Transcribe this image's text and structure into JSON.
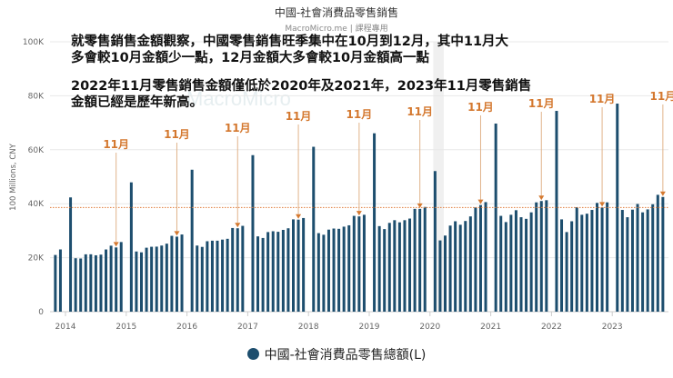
{
  "chart_data": {
    "type": "bar",
    "title": "中國-社會消費品零售銷售",
    "subtitle": "MacroMicro.me | 課程專用",
    "ylabel": "100 Millions, CNY",
    "ylim": [
      0,
      100000
    ],
    "yticks": [
      "0",
      "20K",
      "40K",
      "60K",
      "80K",
      "100K"
    ],
    "xticks": [
      "2014",
      "2015",
      "2016",
      "2017",
      "2018",
      "2019",
      "2020",
      "2021",
      "2022",
      "2023"
    ],
    "grid": true,
    "legend_position": "bottom",
    "series": [
      {
        "name": "中國-社會消費品零售總額(L)",
        "color": "#1d4e6e",
        "points": [
          [
            "2013-11",
            21012
          ],
          [
            "2013-12",
            23060
          ],
          [
            "2014-02",
            42344
          ],
          [
            "2014-03",
            19801
          ],
          [
            "2014-04",
            19701
          ],
          [
            "2014-05",
            21250
          ],
          [
            "2014-06",
            21261
          ],
          [
            "2014-07",
            20890
          ],
          [
            "2014-08",
            21134
          ],
          [
            "2014-09",
            23047
          ],
          [
            "2014-10",
            24451
          ],
          [
            "2014-11",
            23800
          ],
          [
            "2014-12",
            25801
          ],
          [
            "2015-02",
            47919
          ],
          [
            "2015-03",
            22300
          ],
          [
            "2015-04",
            21991
          ],
          [
            "2015-05",
            23700
          ],
          [
            "2015-06",
            24050
          ],
          [
            "2015-07",
            24100
          ],
          [
            "2015-08",
            24500
          ],
          [
            "2015-09",
            25200
          ],
          [
            "2015-10",
            28100
          ],
          [
            "2015-11",
            27800
          ],
          [
            "2015-12",
            28600
          ],
          [
            "2016-02",
            52600
          ],
          [
            "2016-03",
            24500
          ],
          [
            "2016-04",
            24000
          ],
          [
            "2016-05",
            26100
          ],
          [
            "2016-06",
            26300
          ],
          [
            "2016-07",
            26300
          ],
          [
            "2016-08",
            26700
          ],
          [
            "2016-09",
            27000
          ],
          [
            "2016-10",
            31000
          ],
          [
            "2016-11",
            30900
          ],
          [
            "2016-12",
            31800
          ],
          [
            "2017-02",
            58000
          ],
          [
            "2017-03",
            27900
          ],
          [
            "2017-04",
            27300
          ],
          [
            "2017-05",
            29500
          ],
          [
            "2017-06",
            29800
          ],
          [
            "2017-07",
            29600
          ],
          [
            "2017-08",
            30300
          ],
          [
            "2017-09",
            30900
          ],
          [
            "2017-10",
            34200
          ],
          [
            "2017-11",
            34100
          ],
          [
            "2017-12",
            34700
          ],
          [
            "2018-02",
            61100
          ],
          [
            "2018-03",
            29100
          ],
          [
            "2018-04",
            28500
          ],
          [
            "2018-05",
            30400
          ],
          [
            "2018-06",
            30800
          ],
          [
            "2018-07",
            30700
          ],
          [
            "2018-08",
            31500
          ],
          [
            "2018-09",
            32000
          ],
          [
            "2018-10",
            35500
          ],
          [
            "2018-11",
            35300
          ],
          [
            "2018-12",
            35900
          ],
          [
            "2019-02",
            66100
          ],
          [
            "2019-03",
            31700
          ],
          [
            "2019-04",
            30600
          ],
          [
            "2019-05",
            32900
          ],
          [
            "2019-06",
            33900
          ],
          [
            "2019-07",
            33100
          ],
          [
            "2019-08",
            33900
          ],
          [
            "2019-09",
            34500
          ],
          [
            "2019-10",
            38100
          ],
          [
            "2019-11",
            38100
          ],
          [
            "2019-12",
            38800
          ],
          [
            "2020-02",
            52100
          ],
          [
            "2020-03",
            26400
          ],
          [
            "2020-04",
            28200
          ],
          [
            "2020-05",
            31900
          ],
          [
            "2020-06",
            33500
          ],
          [
            "2020-07",
            32200
          ],
          [
            "2020-08",
            33600
          ],
          [
            "2020-09",
            35300
          ],
          [
            "2020-10",
            38600
          ],
          [
            "2020-11",
            39500
          ],
          [
            "2020-12",
            40600
          ],
          [
            "2021-02",
            69700
          ],
          [
            "2021-03",
            35500
          ],
          [
            "2021-04",
            33200
          ],
          [
            "2021-05",
            35900
          ],
          [
            "2021-06",
            37600
          ],
          [
            "2021-07",
            35000
          ],
          [
            "2021-08",
            34400
          ],
          [
            "2021-09",
            36800
          ],
          [
            "2021-10",
            40500
          ],
          [
            "2021-11",
            41000
          ],
          [
            "2021-12",
            41300
          ],
          [
            "2022-02",
            74400
          ],
          [
            "2022-03",
            34200
          ],
          [
            "2022-04",
            29500
          ],
          [
            "2022-05",
            33500
          ],
          [
            "2022-06",
            38700
          ],
          [
            "2022-07",
            35900
          ],
          [
            "2022-08",
            36300
          ],
          [
            "2022-09",
            37700
          ],
          [
            "2022-10",
            40300
          ],
          [
            "2022-11",
            38600
          ],
          [
            "2022-12",
            40500
          ],
          [
            "2023-02",
            77100
          ],
          [
            "2023-03",
            37700
          ],
          [
            "2023-04",
            35000
          ],
          [
            "2023-05",
            37800
          ],
          [
            "2023-06",
            39900
          ],
          [
            "2023-07",
            36800
          ],
          [
            "2023-08",
            37900
          ],
          [
            "2023-09",
            39800
          ],
          [
            "2023-10",
            43300
          ],
          [
            "2023-11",
            42500
          ]
        ]
      }
    ],
    "reference_line": {
      "value": 38600,
      "style": "dotted",
      "color": "#e07b39"
    },
    "shaded_period": [
      "2020-02",
      "2020-03"
    ],
    "annotations": {
      "label": "11月",
      "color": "#d4782f",
      "targets": [
        "2014-11",
        "2015-11",
        "2016-11",
        "2017-11",
        "2018-11",
        "2019-11",
        "2020-11",
        "2021-11",
        "2022-11",
        "2023-11"
      ]
    }
  },
  "notes": [
    "就零售銷售金額觀察，中國零售銷售旺季集中在10月到12月，其中11月大",
    "多會較10月金額少一點，12月金額大多會較10月金額高一點",
    "2022年11月零售銷售金額僅低於2020年及2021年，2023年11月零售銷售",
    "金額已經是歷年新高。"
  ],
  "watermark": "MacroMicro"
}
